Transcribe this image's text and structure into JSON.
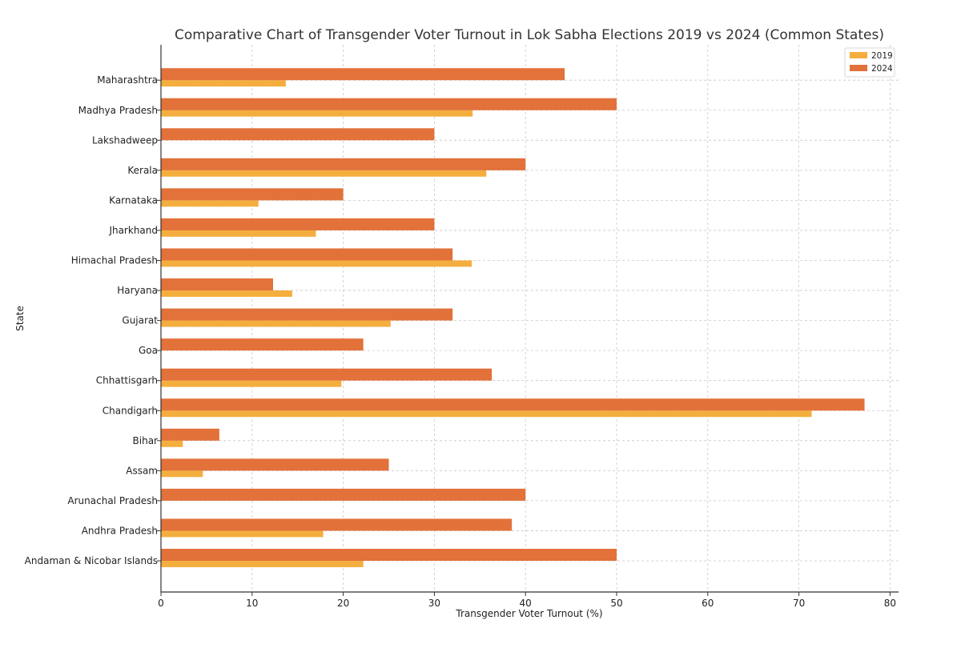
{
  "chart_data": {
    "type": "bar",
    "orientation": "horizontal",
    "title": "Comparative Chart of Transgender Voter Turnout in Lok Sabha Elections 2019 vs 2024 (Common States)",
    "xlabel": "Transgender Voter Turnout (%)",
    "ylabel": "State",
    "xlim": [
      0,
      81
    ],
    "xticks": [
      0,
      10,
      20,
      30,
      40,
      50,
      60,
      70,
      80
    ],
    "grid": true,
    "legend_position": "top-right",
    "categories": [
      "Andaman & Nicobar Islands",
      "Andhra Pradesh",
      "Arunachal Pradesh",
      "Assam",
      "Bihar",
      "Chandigarh",
      "Chhattisgarh",
      "Goa",
      "Gujarat",
      "Haryana",
      "Himachal Pradesh",
      "Jharkhand",
      "Karnataka",
      "Kerala",
      "Lakshadweep",
      "Madhya Pradesh",
      "Maharashtra"
    ],
    "series": [
      {
        "name": "2019",
        "color": "#F4AE3E",
        "values": [
          22.2,
          17.8,
          0,
          4.6,
          2.4,
          71.4,
          19.8,
          0,
          25.2,
          14.4,
          34.1,
          17.0,
          10.7,
          35.7,
          0,
          34.2,
          13.7
        ]
      },
      {
        "name": "2024",
        "color": "#E2713A",
        "values": [
          50.0,
          38.5,
          40.0,
          25.0,
          6.4,
          77.2,
          36.3,
          22.2,
          32.0,
          12.3,
          32.0,
          30.0,
          20.0,
          40.0,
          30.0,
          50.0,
          44.3
        ]
      }
    ]
  }
}
